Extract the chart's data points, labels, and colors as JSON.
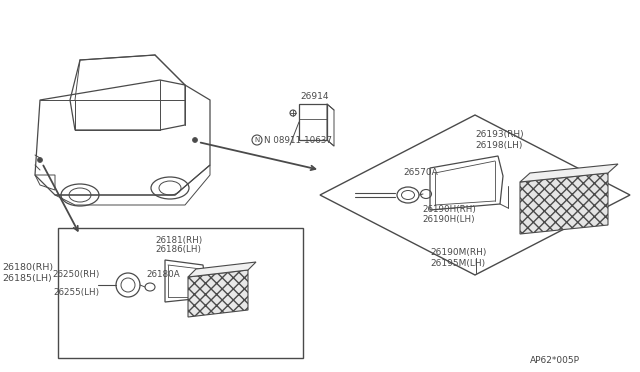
{
  "bg_color": "#ffffff",
  "line_color": "#4a4a4a",
  "text_color": "#4a4a4a",
  "labels": {
    "26180RH": "26180(RH)",
    "26185LH": "26185(LH)",
    "26250RH": "26250(RH)",
    "26255LH": "26255(LH)",
    "26180A": "26180A",
    "26181RH": "26181(RH)",
    "26186LH": "26186(LH)",
    "26914": "26914",
    "N_08911": "N 08911-10637",
    "26193RH": "26193(RH)",
    "26198LH": "26198(LH)",
    "26570A": "26570A",
    "26190HRH": "26190H(RH)",
    "26190HLH": "26190H(LH)",
    "26190MRH": "26190M(RH)",
    "26195MLH": "26195M(LH)",
    "footer": "AP62*005P"
  }
}
